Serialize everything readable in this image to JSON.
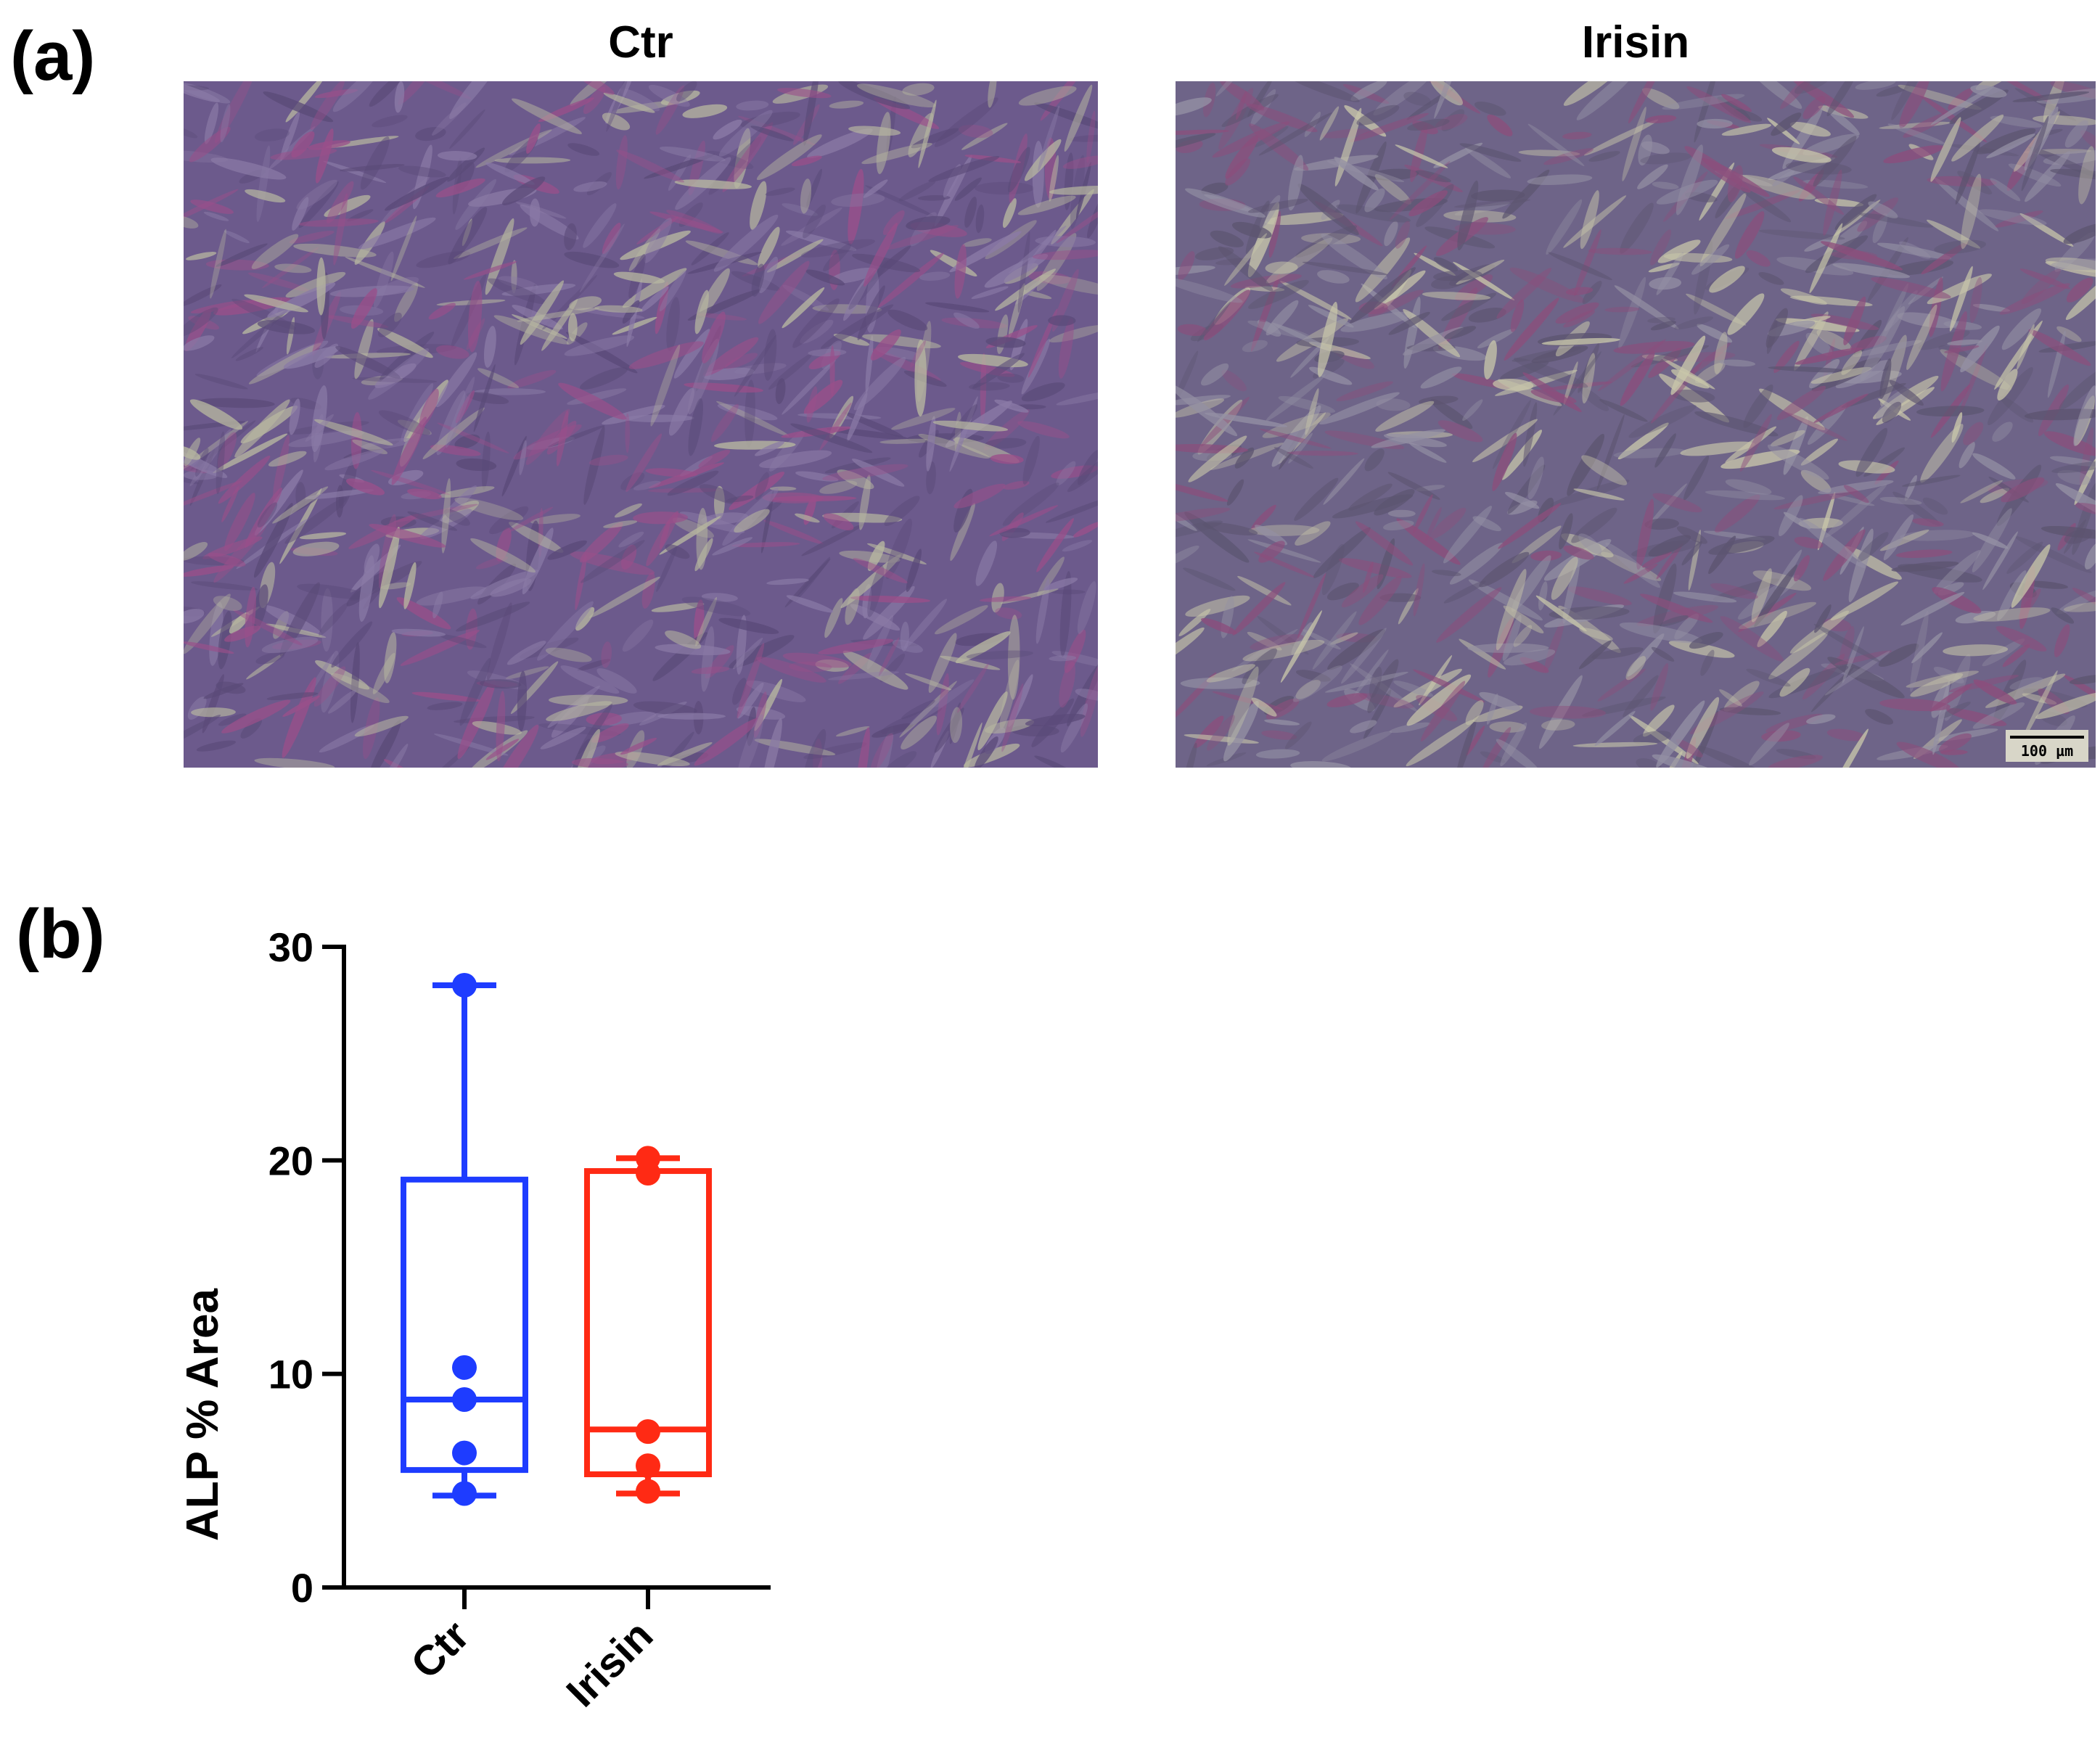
{
  "panels": {
    "a_label": "(a)",
    "b_label": "(b)"
  },
  "micrographs": [
    {
      "title": "Ctr",
      "palette": [
        "#6c5a8c",
        "#8a7aa6",
        "#b7b7a0",
        "#5a4a78",
        "#9a4f8a"
      ]
    },
    {
      "title": "Irisin",
      "palette": [
        "#6e6488",
        "#9490a4",
        "#c8c6aa",
        "#5c5470",
        "#8c4e7c"
      ],
      "scale_bar": "100 µm"
    }
  ],
  "colors": {
    "ctr": "#1e3cff",
    "irisin": "#ff2a14",
    "axis": "#000000"
  },
  "chart_data": {
    "type": "box",
    "ylabel": "ALP % Area",
    "ylim": [
      0,
      30
    ],
    "yticks": [
      0,
      10,
      20,
      30
    ],
    "categories": [
      "Ctr",
      "Irisin"
    ],
    "series": [
      {
        "category": "Ctr",
        "min": 4.3,
        "q1": 5.5,
        "median": 8.8,
        "q3": 19.1,
        "max": 28.2,
        "points": [
          28.2,
          10.3,
          8.8,
          6.3,
          4.4
        ]
      },
      {
        "category": "Irisin",
        "min": 4.4,
        "q1": 5.3,
        "median": 7.4,
        "q3": 19.5,
        "max": 20.1,
        "points": [
          20.1,
          19.4,
          7.3,
          5.7,
          4.5
        ]
      }
    ]
  }
}
